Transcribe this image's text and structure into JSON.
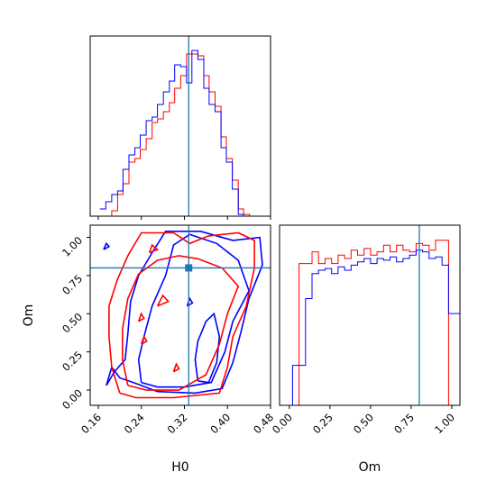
{
  "chart_data": {
    "type": "corner",
    "parameters": [
      "H0",
      "Om"
    ],
    "truth": {
      "H0": 0.328,
      "Om": 0.8
    },
    "series_colors": {
      "red": "#ff0000",
      "blue": "#0000ff",
      "truth": "#1f77b4"
    },
    "panels": {
      "h0_hist": {
        "type": "histogram",
        "xlim": [
          0.145,
          0.48
        ],
        "bins_x": [
          0.163,
          0.174,
          0.185,
          0.196,
          0.206,
          0.217,
          0.228,
          0.238,
          0.249,
          0.26,
          0.27,
          0.281,
          0.292,
          0.302,
          0.313,
          0.324,
          0.334,
          0.345,
          0.356,
          0.366,
          0.377,
          0.388,
          0.398,
          0.409,
          0.42,
          0.43,
          0.441,
          0.452
        ],
        "series": [
          {
            "color": "red",
            "values": [
              0.0,
              0.0,
              0.03,
              0.12,
              0.18,
              0.3,
              0.32,
              0.37,
              0.43,
              0.52,
              0.54,
              0.58,
              0.63,
              0.71,
              0.78,
              0.9,
              0.9,
              0.89,
              0.78,
              0.69,
              0.61,
              0.44,
              0.32,
              0.2,
              0.04,
              0.01,
              0.0
            ]
          },
          {
            "color": "blue",
            "values": [
              0.04,
              0.08,
              0.12,
              0.14,
              0.26,
              0.34,
              0.38,
              0.45,
              0.53,
              0.55,
              0.62,
              0.69,
              0.75,
              0.84,
              0.83,
              0.74,
              0.92,
              0.87,
              0.71,
              0.62,
              0.58,
              0.38,
              0.3,
              0.15,
              0.01,
              0.0,
              0.0
            ]
          }
        ]
      },
      "om_hist": {
        "type": "histogram",
        "xlim": [
          -0.06,
          1.05
        ],
        "xticks": [
          "0.00",
          "0.25",
          "0.50",
          "0.75",
          "1.00"
        ],
        "bins_x": [
          -0.06,
          -0.02,
          0.02,
          0.06,
          0.1,
          0.14,
          0.18,
          0.22,
          0.26,
          0.3,
          0.34,
          0.38,
          0.42,
          0.46,
          0.5,
          0.54,
          0.58,
          0.62,
          0.66,
          0.7,
          0.74,
          0.78,
          0.82,
          0.86,
          0.9,
          0.94,
          0.98,
          1.02,
          1.05
        ],
        "series": [
          {
            "color": "red",
            "values": [
              0.0,
              0.0,
              0.0,
              0.85,
              0.85,
              0.92,
              0.85,
              0.88,
              0.85,
              0.9,
              0.88,
              0.93,
              0.9,
              0.94,
              0.9,
              0.92,
              0.96,
              0.92,
              0.96,
              0.93,
              0.92,
              0.97,
              0.96,
              0.93,
              0.99,
              0.99,
              0.0,
              0.0
            ]
          },
          {
            "color": "blue",
            "values": [
              0.0,
              0.0,
              0.24,
              0.24,
              0.64,
              0.79,
              0.81,
              0.82,
              0.79,
              0.83,
              0.81,
              0.84,
              0.86,
              0.88,
              0.85,
              0.88,
              0.87,
              0.89,
              0.86,
              0.88,
              0.9,
              0.93,
              0.92,
              0.88,
              0.89,
              0.84,
              0.55,
              0.55
            ]
          }
        ]
      },
      "joint": {
        "type": "contour",
        "xlim": [
          0.145,
          0.48
        ],
        "ylim": [
          -0.1,
          1.08
        ],
        "xticks": [
          "0.16",
          "0.24",
          "0.32",
          "0.40",
          "0.48"
        ],
        "yticks": [
          "0.00",
          "0.25",
          "0.50",
          "0.75",
          "1.00"
        ],
        "contours": [
          {
            "color": "blue",
            "points": [
              [
                0.175,
                0.03
              ],
              [
                0.19,
                0.12
              ],
              [
                0.21,
                0.2
              ],
              [
                0.215,
                0.37
              ],
              [
                0.22,
                0.58
              ],
              [
                0.235,
                0.75
              ],
              [
                0.26,
                0.9
              ],
              [
                0.285,
                1.04
              ],
              [
                0.35,
                1.04
              ],
              [
                0.41,
                0.98
              ],
              [
                0.46,
                1.0
              ],
              [
                0.465,
                0.82
              ],
              [
                0.44,
                0.6
              ],
              [
                0.425,
                0.38
              ],
              [
                0.41,
                0.18
              ],
              [
                0.39,
                0.01
              ],
              [
                0.34,
                -0.02
              ],
              [
                0.27,
                -0.01
              ],
              [
                0.225,
                0.05
              ],
              [
                0.2,
                0.08
              ],
              [
                0.185,
                0.15
              ],
              [
                0.175,
                0.03
              ]
            ]
          },
          {
            "color": "blue",
            "points": [
              [
                0.24,
                0.05
              ],
              [
                0.235,
                0.2
              ],
              [
                0.245,
                0.35
              ],
              [
                0.26,
                0.55
              ],
              [
                0.285,
                0.75
              ],
              [
                0.3,
                0.95
              ],
              [
                0.33,
                1.02
              ],
              [
                0.38,
                0.96
              ],
              [
                0.42,
                0.85
              ],
              [
                0.44,
                0.65
              ],
              [
                0.41,
                0.45
              ],
              [
                0.395,
                0.25
              ],
              [
                0.37,
                0.05
              ],
              [
                0.32,
                0.02
              ],
              [
                0.27,
                0.02
              ],
              [
                0.24,
                0.05
              ]
            ]
          },
          {
            "color": "blue",
            "points": [
              [
                0.345,
                0.06
              ],
              [
                0.34,
                0.2
              ],
              [
                0.345,
                0.32
              ],
              [
                0.36,
                0.45
              ],
              [
                0.375,
                0.5
              ],
              [
                0.385,
                0.35
              ],
              [
                0.38,
                0.18
              ],
              [
                0.365,
                0.05
              ],
              [
                0.345,
                0.06
              ]
            ]
          },
          {
            "color": "blue",
            "points": [
              [
                0.17,
                0.92
              ],
              [
                0.18,
                0.94
              ],
              [
                0.175,
                0.96
              ],
              [
                0.17,
                0.92
              ]
            ]
          },
          {
            "color": "blue",
            "points": [
              [
                0.325,
                0.55
              ],
              [
                0.335,
                0.57
              ],
              [
                0.33,
                0.6
              ],
              [
                0.325,
                0.55
              ]
            ]
          },
          {
            "color": "red",
            "points": [
              [
                0.2,
                -0.02
              ],
              [
                0.185,
                0.15
              ],
              [
                0.18,
                0.35
              ],
              [
                0.18,
                0.55
              ],
              [
                0.195,
                0.72
              ],
              [
                0.215,
                0.88
              ],
              [
                0.24,
                1.03
              ],
              [
                0.3,
                1.03
              ],
              [
                0.33,
                0.96
              ],
              [
                0.365,
                1.01
              ],
              [
                0.42,
                1.03
              ],
              [
                0.45,
                0.98
              ],
              [
                0.45,
                0.8
              ],
              [
                0.435,
                0.55
              ],
              [
                0.41,
                0.35
              ],
              [
                0.4,
                0.15
              ],
              [
                0.385,
                -0.02
              ],
              [
                0.3,
                -0.05
              ],
              [
                0.23,
                -0.05
              ],
              [
                0.2,
                -0.02
              ]
            ]
          },
          {
            "color": "red",
            "points": [
              [
                0.215,
                0.03
              ],
              [
                0.205,
                0.2
              ],
              [
                0.205,
                0.4
              ],
              [
                0.215,
                0.6
              ],
              [
                0.235,
                0.76
              ],
              [
                0.27,
                0.85
              ],
              [
                0.31,
                0.88
              ],
              [
                0.345,
                0.86
              ],
              [
                0.39,
                0.8
              ],
              [
                0.42,
                0.68
              ],
              [
                0.4,
                0.5
              ],
              [
                0.385,
                0.3
              ],
              [
                0.36,
                0.1
              ],
              [
                0.31,
                0.0
              ],
              [
                0.25,
                0.0
              ],
              [
                0.215,
                0.03
              ]
            ]
          },
          {
            "color": "red",
            "points": [
              [
                0.27,
                0.55
              ],
              [
                0.29,
                0.58
              ],
              [
                0.28,
                0.62
              ],
              [
                0.27,
                0.55
              ]
            ]
          },
          {
            "color": "red",
            "points": [
              [
                0.235,
                0.45
              ],
              [
                0.245,
                0.47
              ],
              [
                0.24,
                0.5
              ],
              [
                0.235,
                0.45
              ]
            ]
          },
          {
            "color": "red",
            "points": [
              [
                0.24,
                0.3
              ],
              [
                0.25,
                0.32
              ],
              [
                0.245,
                0.35
              ],
              [
                0.24,
                0.3
              ]
            ]
          },
          {
            "color": "red",
            "points": [
              [
                0.255,
                0.9
              ],
              [
                0.27,
                0.92
              ],
              [
                0.26,
                0.95
              ],
              [
                0.255,
                0.9
              ]
            ]
          },
          {
            "color": "red",
            "points": [
              [
                0.3,
                0.12
              ],
              [
                0.31,
                0.14
              ],
              [
                0.305,
                0.17
              ],
              [
                0.3,
                0.12
              ]
            ]
          }
        ]
      }
    }
  }
}
